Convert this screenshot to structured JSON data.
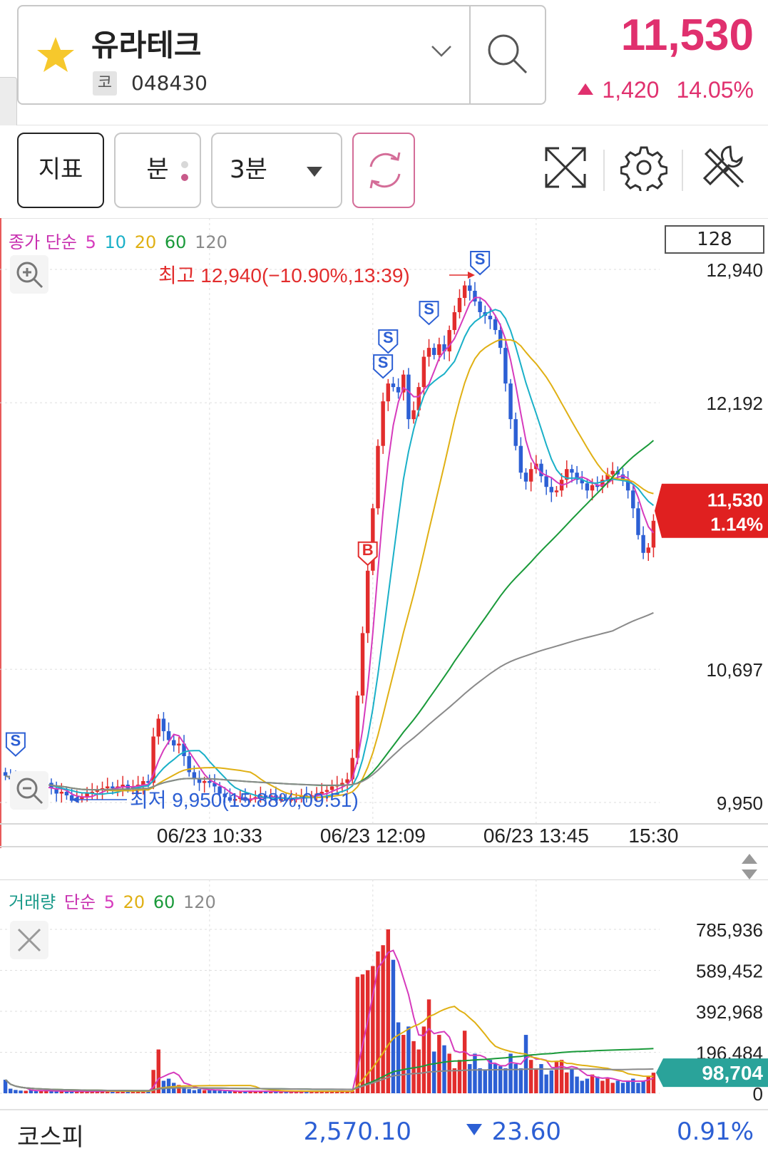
{
  "header": {
    "stock_name": "유라테크",
    "market_badge": "코",
    "stock_code": "048430",
    "price": "11,530",
    "change": "1,420",
    "change_pct": "14.05%"
  },
  "toolbar": {
    "indicator_label": "지표",
    "minute_label": "분",
    "interval_value": "3분"
  },
  "price_panel": {
    "legend": {
      "prefix": "종가 단순",
      "ma5": "5",
      "ma10": "10",
      "ma20": "20",
      "ma60": "60",
      "ma120": "120"
    },
    "count_box": "128",
    "high_annotation": "최고 12,940(−10.90%,13:39)",
    "low_annotation": "최저 9,950(15.88%,09:51)",
    "price_tag_value": "11,530",
    "price_tag_pct": "1.14%",
    "axis_labels": [
      "12,940",
      "12,192",
      "10,697",
      "9,950"
    ],
    "time_labels": [
      "06/23 10:33",
      "06/23 12:09",
      "06/23 13:45",
      "15:30"
    ],
    "signal_buy": "B",
    "signal_sell": "S"
  },
  "volume_panel": {
    "legend": {
      "prefix1": "거래량",
      "prefix2": "단순",
      "ma5": "5",
      "ma20": "20",
      "ma60": "60",
      "ma120": "120"
    },
    "axis_labels": [
      "785,936",
      "589,452",
      "392,968",
      "196,484",
      "0"
    ],
    "volume_tag": "98,704"
  },
  "footer": {
    "index_name": "코스피",
    "index_value": "2,570.10",
    "index_change": "23.60",
    "index_pct": "0.91%"
  },
  "colors": {
    "up": "#e22d2d",
    "down": "#2c5fd4",
    "accent": "#e0306e",
    "ma5": "#d63bbd",
    "ma10": "#1ab0c8",
    "ma20": "#e0b014",
    "ma60": "#1a9a3a",
    "ma120": "#8a8a8a"
  },
  "chart_data": [
    {
      "type": "line",
      "title": "",
      "xlabel": "",
      "ylabel": "",
      "x_ticks": [
        "06/23 10:33",
        "06/23 12:09",
        "06/23 13:45",
        "15:30"
      ],
      "y_ticks": [
        12940,
        12192,
        10697,
        9950
      ],
      "ylim": [
        9950,
        12940
      ],
      "high": {
        "price": 12940,
        "time": "13:39"
      },
      "low": {
        "price": 9950,
        "time": "09:51"
      },
      "close": [
        10100,
        10080,
        10060,
        10020,
        10050,
        10030,
        10000,
        10040,
        10060,
        10030,
        10000,
        10010,
        9990,
        9960,
        9970,
        9980,
        10000,
        10010,
        10020,
        10030,
        10040,
        10030,
        10040,
        10050,
        10030,
        10040,
        10050,
        10070,
        10060,
        10320,
        10420,
        10350,
        10300,
        10270,
        10280,
        10210,
        10120,
        10080,
        10060,
        10070,
        10060,
        10040,
        10000,
        9980,
        9960,
        9970,
        9980,
        9960,
        9970,
        9980,
        9990,
        9980,
        9990,
        9960,
        9970,
        9960,
        9970,
        9980,
        9990,
        9980,
        9990,
        10000,
        10010,
        10020,
        10040,
        10050,
        10060,
        10080,
        10200,
        10550,
        10900,
        11250,
        11600,
        11950,
        12200,
        12300,
        12280,
        12250,
        12350,
        12100,
        12150,
        12280,
        12450,
        12500,
        12460,
        12520,
        12480,
        12600,
        12700,
        12780,
        12850,
        12820,
        12760,
        12700,
        12680,
        12660,
        12600,
        12500,
        12300,
        12100,
        11950,
        11800,
        11750,
        11820,
        11850,
        11780,
        11720,
        11690,
        11700,
        11760,
        11820,
        11800,
        11760,
        11740,
        11700,
        11730,
        11720,
        11760,
        11790,
        11810,
        11790,
        11760,
        11700,
        11600,
        11450,
        11350,
        11380,
        11530
      ],
      "ma5_label": "5",
      "ma10_label": "10",
      "ma20_label": "20",
      "ma60_label": "60",
      "ma120_label": "120"
    },
    {
      "type": "bar",
      "title": "",
      "ylim": [
        0,
        785936
      ],
      "y_ticks": [
        785936,
        589452,
        392968,
        196484,
        0
      ],
      "last_volume": 98704,
      "values": [
        65000,
        22000,
        16000,
        13000,
        12000,
        16000,
        10000,
        12000,
        13000,
        10000,
        9000,
        10000,
        8000,
        12000,
        7000,
        9000,
        8000,
        10000,
        11000,
        8000,
        9000,
        10000,
        12000,
        8000,
        9000,
        8000,
        9000,
        12000,
        8000,
        112000,
        210000,
        60000,
        70000,
        50000,
        40000,
        30000,
        20000,
        15000,
        20000,
        15000,
        16000,
        15000,
        12000,
        10000,
        10000,
        9000,
        9000,
        12000,
        12000,
        8000,
        8000,
        9000,
        8000,
        9000,
        8000,
        7000,
        8000,
        9000,
        9000,
        10000,
        8000,
        9000,
        10000,
        11000,
        12000,
        10000,
        10000,
        8000,
        10000,
        558000,
        570000,
        590000,
        610000,
        680000,
        710000,
        785936,
        640000,
        340000,
        280000,
        320000,
        250000,
        210000,
        320000,
        450000,
        200000,
        280000,
        230000,
        190000,
        120000,
        160000,
        300000,
        140000,
        190000,
        120000,
        110000,
        160000,
        140000,
        130000,
        120000,
        190000,
        140000,
        120000,
        280000,
        160000,
        120000,
        140000,
        90000,
        110000,
        150000,
        160000,
        100000,
        120000,
        80000,
        60000,
        70000,
        90000,
        80000,
        60000,
        70000,
        50000,
        60000,
        50000,
        60000,
        70000,
        50000,
        60000,
        80000,
        98704
      ],
      "series": [
        {
          "name": "5",
          "color": "#d63bbd"
        },
        {
          "name": "20",
          "color": "#e0b014"
        },
        {
          "name": "60",
          "color": "#1a9a3a"
        },
        {
          "name": "120",
          "color": "#8a8a8a"
        }
      ]
    }
  ]
}
